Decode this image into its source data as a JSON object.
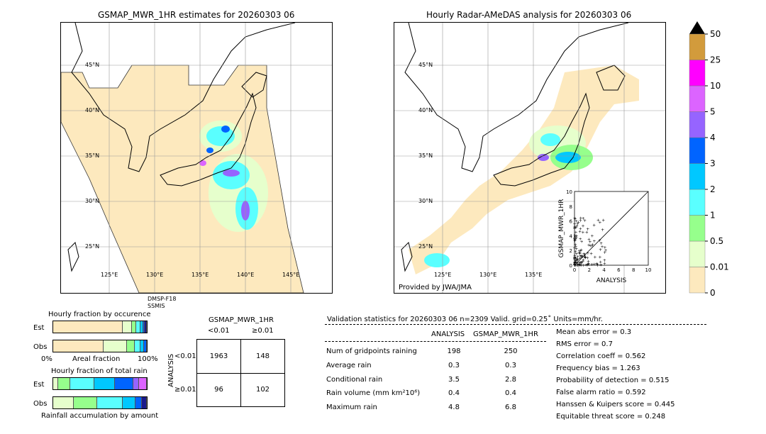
{
  "left_map": {
    "title": "GSMAP_MWR_1HR estimates for 20260303 06",
    "sat_label_1": "DMSP-F18",
    "sat_label_2": "SSMIS"
  },
  "right_map": {
    "title": "Hourly Radar-AMeDAS analysis for 20260303 06",
    "credit": "Provided by JWA/JMA"
  },
  "map_axes": {
    "lat_labels": [
      "45°N",
      "40°N",
      "35°N",
      "30°N",
      "25°N"
    ],
    "lon_labels": [
      "125°E",
      "130°E",
      "135°E",
      "140°E",
      "145°E"
    ]
  },
  "colorbar": {
    "ticks": [
      "0",
      "0.01",
      "0.5",
      "1",
      "2",
      "3",
      "4",
      "5",
      "10",
      "25",
      "50"
    ],
    "colors": [
      "#fde9be",
      "#e6ffcc",
      "#96ff8c",
      "#5affff",
      "#00c8ff",
      "#0064ff",
      "#9664ff",
      "#dc64ff",
      "#ff00ff",
      "#d29b3c"
    ],
    "extend_color": "#000000"
  },
  "scatter_inset": {
    "xlabel": "ANALYSIS",
    "ylabel": "GSMAP_MWR_1HR",
    "ticks": [
      "0",
      "2",
      "4",
      "6",
      "8",
      "10"
    ]
  },
  "fraction_occurrence": {
    "title": "Hourly fraction by occurence",
    "row_labels": [
      "Est",
      "Obs"
    ],
    "xlabel_left": "0%",
    "xlabel_mid": "Areal fraction",
    "xlabel_right": "100%",
    "est_segments": [
      {
        "fraction": 0.74,
        "color": "#fde9be"
      },
      {
        "fraction": 0.1,
        "color": "#e6ffcc"
      },
      {
        "fraction": 0.05,
        "color": "#96ff8c"
      },
      {
        "fraction": 0.04,
        "color": "#5affff"
      },
      {
        "fraction": 0.03,
        "color": "#00c8ff"
      },
      {
        "fraction": 0.02,
        "color": "#0064ff"
      },
      {
        "fraction": 0.02,
        "color": "#1a1a8c"
      }
    ],
    "obs_segments": [
      {
        "fraction": 0.54,
        "color": "#fde9be"
      },
      {
        "fraction": 0.25,
        "color": "#e6ffcc"
      },
      {
        "fraction": 0.08,
        "color": "#96ff8c"
      },
      {
        "fraction": 0.06,
        "color": "#5affff"
      },
      {
        "fraction": 0.04,
        "color": "#00c8ff"
      },
      {
        "fraction": 0.03,
        "color": "#0064ff"
      }
    ]
  },
  "fraction_total": {
    "title": "Hourly fraction of total rain",
    "row_labels": [
      "Est",
      "Obs"
    ],
    "xlabel": "Rainfall accumulation by amount",
    "est_segments": [
      {
        "fraction": 0.05,
        "color": "#e6ffcc"
      },
      {
        "fraction": 0.13,
        "color": "#96ff8c"
      },
      {
        "fraction": 0.26,
        "color": "#5affff"
      },
      {
        "fraction": 0.22,
        "color": "#00c8ff"
      },
      {
        "fraction": 0.2,
        "color": "#0064ff"
      },
      {
        "fraction": 0.06,
        "color": "#9664ff"
      },
      {
        "fraction": 0.08,
        "color": "#dc64ff"
      }
    ],
    "obs_segments": [
      {
        "fraction": 0.22,
        "color": "#e6ffcc"
      },
      {
        "fraction": 0.25,
        "color": "#96ff8c"
      },
      {
        "fraction": 0.27,
        "color": "#5affff"
      },
      {
        "fraction": 0.14,
        "color": "#00c8ff"
      },
      {
        "fraction": 0.07,
        "color": "#0064ff"
      },
      {
        "fraction": 0.05,
        "color": "#1a1a8c"
      }
    ]
  },
  "contingency": {
    "title": "GSMAP_MWR_1HR",
    "col_labels": [
      "<0.01",
      "≥0.01"
    ],
    "row_axis": "ANALYSIS",
    "row_labels": [
      "<0.01",
      "≥0.01"
    ],
    "cells": [
      [
        "1963",
        "148"
      ],
      [
        "96",
        "102"
      ]
    ]
  },
  "validation": {
    "header": "Validation statistics for 20260303 06  n=2309 Valid. grid=0.25˚ Units=mm/hr.",
    "col_analysis": "ANALYSIS",
    "col_gsmap": "GSMAP_MWR_1HR",
    "rows": [
      {
        "label": "Num of gridpoints raining",
        "analysis": "198",
        "gsmap": "250"
      },
      {
        "label": "Average rain",
        "analysis": "0.3",
        "gsmap": "0.3"
      },
      {
        "label": "Conditional rain",
        "analysis": "3.5",
        "gsmap": "2.8"
      },
      {
        "label": "Rain volume (mm km²10⁶)",
        "analysis": "0.4",
        "gsmap": "0.4"
      },
      {
        "label": "Maximum rain",
        "analysis": "4.8",
        "gsmap": "6.8"
      }
    ],
    "scores": [
      "Mean abs error =    0.3",
      "RMS error =    0.7",
      "Correlation coeff =  0.562",
      "Frequency bias =  1.263",
      "Probability of detection =  0.515",
      "False alarm ratio =  0.592",
      "Hanssen & Kuipers score =  0.445",
      "Equitable threat score =  0.248"
    ]
  }
}
